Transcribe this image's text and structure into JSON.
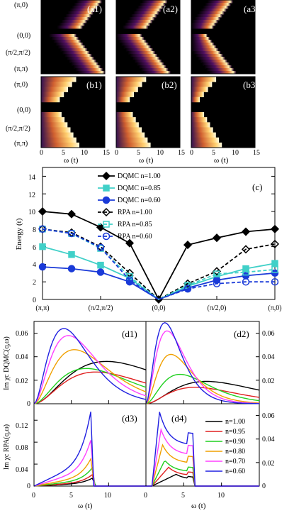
{
  "colors": {
    "dqmc_100": "#000000",
    "dqmc_085": "#40d0c8",
    "dqmc_060": "#1a3ad8",
    "rpa_100": "#000000",
    "rpa_085": "#40d0c8",
    "rpa_060": "#1a3ad8",
    "n100": "#000000",
    "n095": "#e02020",
    "n090": "#20d020",
    "n080": "#f0a000",
    "n070": "#ff40ff",
    "n060": "#2020e0"
  },
  "chart_data": [
    {
      "type": "heatmap",
      "panels": [
        "(a1)",
        "(a2)",
        "(a3)",
        "(b1)",
        "(b2)",
        "(b3)"
      ],
      "momentum_labels": [
        "(π,0)",
        "(0,0)",
        "(π/2,π/2)",
        "(π,π)"
      ],
      "xlabel": "ω (t)",
      "x_ticks": [
        "0",
        "5",
        "10",
        "15"
      ],
      "xlim": [
        0,
        15
      ],
      "colormap": "black-purple-orange-yellow-white"
    },
    {
      "type": "line",
      "panel_label": "(c)",
      "ylabel": "Energy (t)",
      "ylim": [
        0,
        15
      ],
      "y_ticks": [
        "0",
        "2",
        "4",
        "6",
        "8",
        "10",
        "12",
        "14"
      ],
      "x_tick_labels": [
        "(π,π)",
        "(π/2,π/2)",
        "(0,0)",
        "(π/2,0)",
        "(π,0)"
      ],
      "series": [
        {
          "name": "DQMC n=1.00",
          "x": [
            0,
            1,
            2,
            3,
            4,
            5,
            6,
            7,
            8
          ],
          "y": [
            10.0,
            9.7,
            8.2,
            6.4,
            0.0,
            6.2,
            7.0,
            7.7,
            8.0
          ]
        },
        {
          "name": "DQMC n=0.85",
          "x": [
            0,
            1,
            2,
            3,
            4,
            5,
            6,
            7,
            8
          ],
          "y": [
            6.0,
            5.1,
            3.9,
            2.4,
            0.0,
            1.5,
            2.6,
            3.5,
            4.1
          ]
        },
        {
          "name": "DQMC n=0.60",
          "x": [
            0,
            1,
            2,
            3,
            4,
            5,
            6,
            7,
            8
          ],
          "y": [
            3.7,
            3.5,
            3.1,
            2.0,
            0.0,
            1.3,
            2.2,
            2.7,
            3.0
          ]
        },
        {
          "name": "RPA n=1.00",
          "x": [
            0,
            1,
            2,
            3,
            4,
            5,
            6,
            7,
            8
          ],
          "y": [
            8.0,
            7.6,
            6.0,
            3.0,
            0.0,
            1.8,
            3.2,
            5.7,
            6.3
          ]
        },
        {
          "name": "RPA n=0.85",
          "x": [
            0,
            1,
            2,
            3,
            4,
            5,
            6,
            7,
            8
          ],
          "y": [
            8.0,
            7.5,
            5.8,
            2.6,
            0.0,
            1.6,
            2.9,
            3.1,
            3.4
          ]
        },
        {
          "name": "RPA n=0.60",
          "x": [
            0,
            1,
            2,
            3,
            4,
            5,
            6,
            7,
            8
          ],
          "y": [
            8.0,
            7.5,
            5.9,
            2.2,
            0.0,
            1.2,
            1.8,
            2.0,
            2.0
          ]
        }
      ]
    },
    {
      "type": "line",
      "panels": [
        "(d1)",
        "(d2)",
        "(d3)",
        "(d4)"
      ],
      "ylabel_top": "Im χc DQMC(q,ω)",
      "ylabel_bottom": "Im χc RPA(q,ω)",
      "xlabel": "ω (t)",
      "x_ticks": [
        "0",
        "5",
        "10",
        "0",
        "5",
        "10"
      ],
      "top_y_ticks": [
        "0",
        "0.02",
        "0.04",
        "0.06"
      ],
      "bottom_y_ticks_left": [
        "0",
        "0.04",
        "0.08",
        "0.12"
      ],
      "bottom_y_ticks_right": [
        "0",
        "0.02",
        "0.04",
        "0.06"
      ],
      "legend": [
        "n=1.00",
        "n=0.95",
        "n=0.90",
        "n=0.80",
        "n=0.70",
        "n=0.60"
      ],
      "d1_peaks": [
        {
          "name": "n=1.00",
          "peak_x": 9.7,
          "peak_y": 0.036
        },
        {
          "name": "n=0.95",
          "peak_x": 8.3,
          "peak_y": 0.027
        },
        {
          "name": "n=0.90",
          "peak_x": 7.0,
          "peak_y": 0.03
        },
        {
          "name": "n=0.80",
          "peak_x": 5.4,
          "peak_y": 0.046
        },
        {
          "name": "n=0.70",
          "peak_x": 4.6,
          "peak_y": 0.058
        },
        {
          "name": "n=0.60",
          "peak_x": 4.0,
          "peak_y": 0.064
        }
      ],
      "d2_peaks": [
        {
          "name": "n=1.00",
          "peak_x": 8.0,
          "peak_y": 0.019
        },
        {
          "name": "n=0.95",
          "peak_x": 6.5,
          "peak_y": 0.014
        },
        {
          "name": "n=0.90",
          "peak_x": 4.5,
          "peak_y": 0.025
        },
        {
          "name": "n=0.80",
          "peak_x": 3.3,
          "peak_y": 0.042
        },
        {
          "name": "n=0.70",
          "peak_x": 2.8,
          "peak_y": 0.062
        },
        {
          "name": "n=0.60",
          "peak_x": 2.5,
          "peak_y": 0.069
        }
      ],
      "d3_edge": [
        {
          "name": "n=1.00",
          "edge_x": 8.0,
          "edge_y": 0.016
        },
        {
          "name": "n=0.95",
          "edge_x": 7.9,
          "edge_y": 0.022
        },
        {
          "name": "n=0.90",
          "edge_x": 7.9,
          "edge_y": 0.035
        },
        {
          "name": "n=0.80",
          "edge_x": 7.8,
          "edge_y": 0.055
        },
        {
          "name": "n=0.70",
          "edge_x": 7.8,
          "edge_y": 0.093
        },
        {
          "name": "n=0.60",
          "edge_x": 7.7,
          "edge_y": 0.143
        }
      ],
      "d4_peaks": [
        {
          "name": "n=1.00",
          "peak_x": 4.0,
          "peak_y": 0.01
        },
        {
          "name": "n=0.95",
          "peak_x": 3.0,
          "peak_y": 0.016
        },
        {
          "name": "n=0.90",
          "peak_x": 2.5,
          "peak_y": 0.022
        },
        {
          "name": "n=0.80",
          "peak_x": 2.2,
          "peak_y": 0.035
        },
        {
          "name": "n=0.70",
          "peak_x": 2.0,
          "peak_y": 0.048
        },
        {
          "name": "n=0.60",
          "peak_x": 1.8,
          "peak_y": 0.063
        }
      ]
    }
  ]
}
